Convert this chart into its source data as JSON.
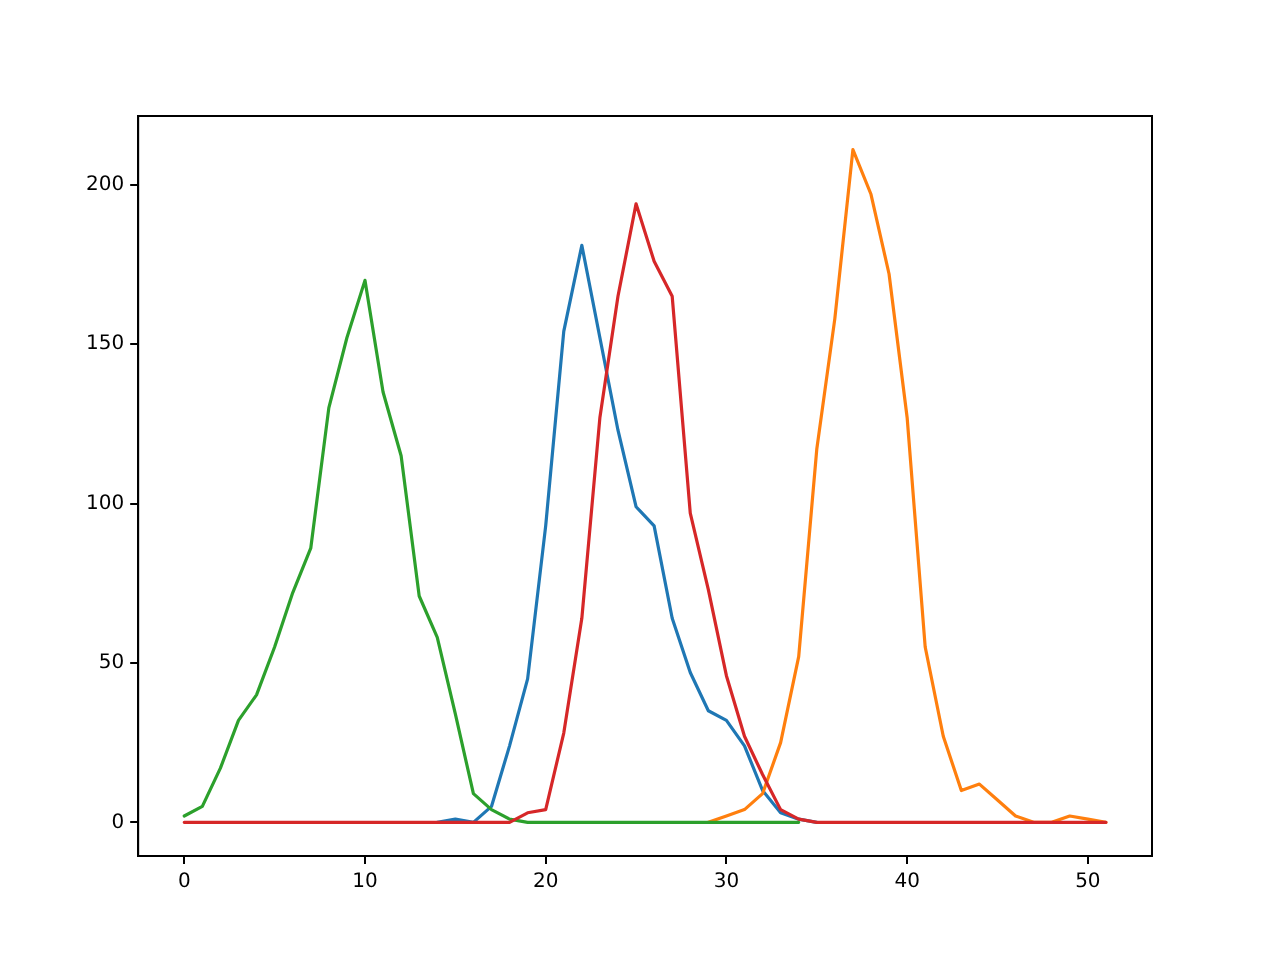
{
  "chart_data": {
    "type": "line",
    "x": [
      0,
      1,
      2,
      3,
      4,
      5,
      6,
      7,
      8,
      9,
      10,
      11,
      12,
      13,
      14,
      15,
      16,
      17,
      18,
      19,
      20,
      21,
      22,
      23,
      24,
      25,
      26,
      27,
      28,
      29,
      30,
      31,
      32,
      33,
      34,
      35,
      36,
      37,
      38,
      39,
      40,
      41,
      42,
      43,
      44,
      45,
      46,
      47,
      48,
      49,
      50,
      51
    ],
    "series": [
      {
        "color": "#1f77b4",
        "values": [
          null,
          null,
          null,
          null,
          null,
          null,
          null,
          null,
          null,
          null,
          null,
          null,
          null,
          null,
          0,
          1,
          0,
          5,
          24,
          45,
          93,
          154,
          181,
          152,
          123,
          99,
          93,
          64,
          47,
          35,
          32,
          24,
          10,
          3,
          1,
          0,
          null,
          null,
          null,
          null,
          null,
          null,
          null,
          null,
          null,
          null,
          null,
          null,
          null,
          null,
          null,
          null
        ]
      },
      {
        "color": "#ff7f0e",
        "values": [
          null,
          null,
          null,
          null,
          null,
          null,
          null,
          null,
          null,
          null,
          null,
          null,
          null,
          null,
          null,
          null,
          null,
          null,
          null,
          null,
          null,
          null,
          null,
          null,
          null,
          null,
          null,
          null,
          null,
          0,
          2,
          4,
          9,
          25,
          52,
          117,
          158,
          211,
          197,
          172,
          127,
          55,
          27,
          10,
          12,
          7,
          2,
          0,
          0,
          2,
          1,
          0
        ]
      },
      {
        "color": "#2ca02c",
        "values": [
          2,
          5,
          17,
          32,
          40,
          55,
          72,
          86,
          130,
          152,
          170,
          135,
          115,
          71,
          58,
          34,
          9,
          4,
          1,
          0,
          0,
          0,
          0,
          0,
          0,
          0,
          0,
          0,
          0,
          0,
          0,
          0,
          0,
          0,
          0,
          null,
          null,
          null,
          null,
          null,
          null,
          null,
          null,
          null,
          null,
          null,
          null,
          null,
          null,
          null,
          null,
          null
        ]
      },
      {
        "color": "#d62728",
        "values": [
          0,
          0,
          0,
          0,
          0,
          0,
          0,
          0,
          0,
          0,
          0,
          0,
          0,
          0,
          0,
          0,
          0,
          0,
          0,
          3,
          4,
          28,
          64,
          127,
          165,
          194,
          176,
          165,
          97,
          73,
          46,
          27,
          15,
          4,
          1,
          0,
          0,
          0,
          0,
          0,
          0,
          0,
          0,
          0,
          0,
          0,
          0,
          0,
          0,
          0,
          0,
          0
        ]
      }
    ],
    "xlim": [
      -2.55,
      53.55
    ],
    "xticks": [
      0,
      10,
      20,
      30,
      40,
      50
    ],
    "ylim": [
      -10.55,
      221.55
    ],
    "yticks": [
      0,
      50,
      100,
      150,
      200
    ],
    "grid": false,
    "legend": false,
    "marker": "none",
    "line_style": "solid"
  }
}
